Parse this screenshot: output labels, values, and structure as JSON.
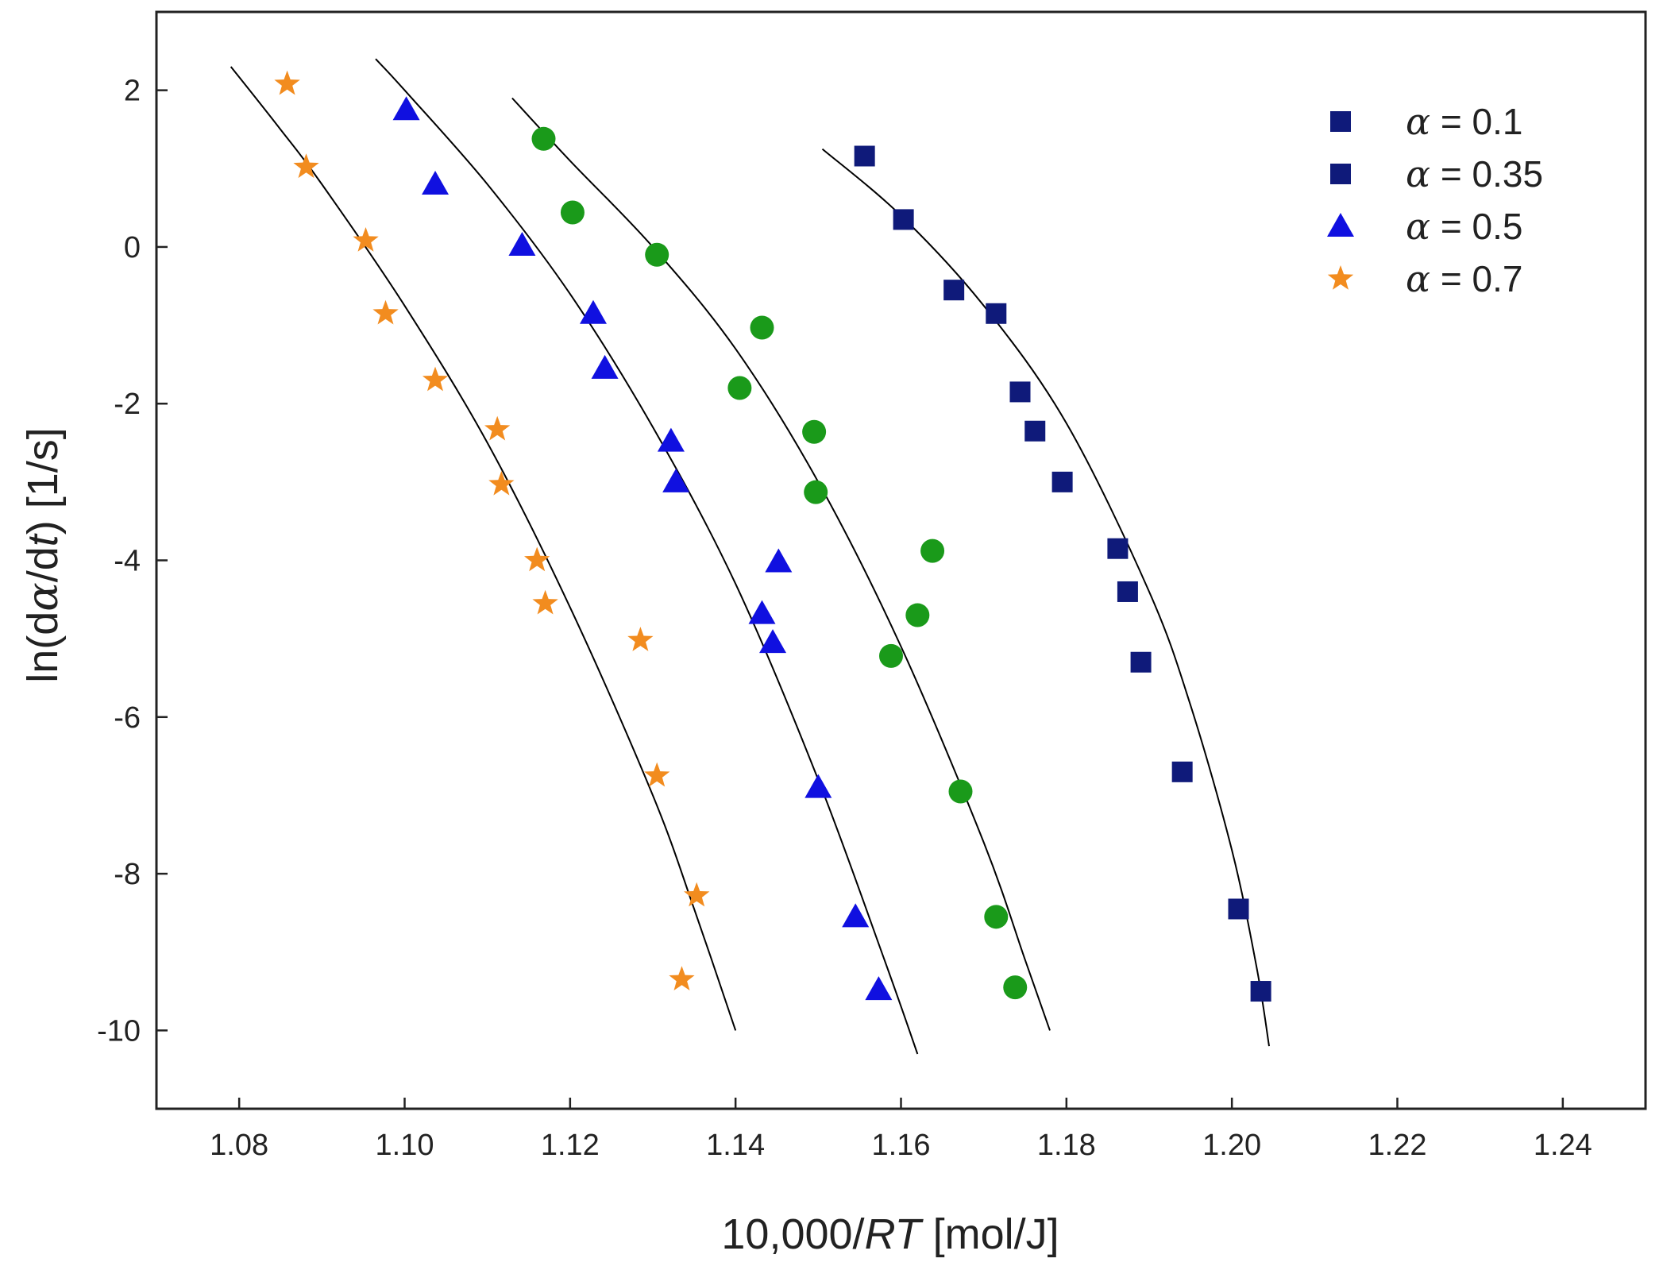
{
  "colors": {
    "square": "#0f1a7a",
    "circle": "#1a9a1a",
    "triangle": "#1010e0",
    "star": "#f28c1f",
    "fit_line": "#000000",
    "axis": "#222222"
  },
  "chart_data": {
    "type": "scatter",
    "title": "",
    "xlabel_parts": {
      "pre": "10,000/",
      "italic": "RT",
      "post": " [mol/J]"
    },
    "ylabel_parts": {
      "pre": "ln(d",
      "greek": "α",
      "mid": "/d",
      "italic": "t",
      "post": ")  [1/s]"
    },
    "xlim": [
      1.07,
      1.25
    ],
    "ylim": [
      -11,
      3
    ],
    "xticks": [
      1.08,
      1.1,
      1.12,
      1.14,
      1.16,
      1.18,
      1.2,
      1.22,
      1.24
    ],
    "xtick_labels": [
      "1.08",
      "1.10",
      "1.12",
      "1.14",
      "1.16",
      "1.18",
      "1.20",
      "1.22",
      "1.24"
    ],
    "yticks": [
      2,
      0,
      -2,
      -4,
      -6,
      -8,
      -10
    ],
    "ytick_labels": [
      "2",
      "0",
      "-2",
      "-4",
      "-6",
      "-8",
      "-10"
    ],
    "grid": false,
    "legend_position": "top-right",
    "legend": [
      {
        "symbol": "square",
        "greek": "α",
        "text": " = 0.1"
      },
      {
        "symbol": "square",
        "greek": "α",
        "text": " = 0.35"
      },
      {
        "symbol": "triangle",
        "greek": "α",
        "text": " = 0.5"
      },
      {
        "symbol": "star",
        "greek": "α",
        "text": " = 0.7"
      }
    ],
    "series": [
      {
        "marker": "square",
        "points": [
          [
            1.1556,
            1.16
          ],
          [
            1.1603,
            0.35
          ],
          [
            1.1664,
            -0.55
          ],
          [
            1.1715,
            -0.85
          ],
          [
            1.1744,
            -1.85
          ],
          [
            1.1762,
            -2.35
          ],
          [
            1.1795,
            -3.0
          ],
          [
            1.1862,
            -3.85
          ],
          [
            1.1874,
            -4.4
          ],
          [
            1.189,
            -5.3
          ],
          [
            1.194,
            -6.7
          ],
          [
            1.2008,
            -8.45
          ],
          [
            1.2035,
            -9.5
          ]
        ],
        "fit": [
          [
            1.1505,
            1.25
          ],
          [
            1.16,
            0.4
          ],
          [
            1.17,
            -0.75
          ],
          [
            1.18,
            -2.25
          ],
          [
            1.19,
            -4.4
          ],
          [
            1.195,
            -5.85
          ],
          [
            1.2,
            -7.7
          ],
          [
            1.203,
            -9.2
          ],
          [
            1.2045,
            -10.2
          ]
        ]
      },
      {
        "marker": "circle",
        "points": [
          [
            1.1168,
            1.38
          ],
          [
            1.1203,
            0.44
          ],
          [
            1.1305,
            -0.1
          ],
          [
            1.1432,
            -1.03
          ],
          [
            1.1405,
            -1.8
          ],
          [
            1.1495,
            -2.36
          ],
          [
            1.1497,
            -3.13
          ],
          [
            1.1638,
            -3.88
          ],
          [
            1.162,
            -4.7
          ],
          [
            1.1588,
            -5.22
          ],
          [
            1.1672,
            -6.95
          ],
          [
            1.1715,
            -8.55
          ],
          [
            1.1738,
            -9.45
          ]
        ],
        "fit": [
          [
            1.113,
            1.9
          ],
          [
            1.12,
            1.1
          ],
          [
            1.13,
            0.0
          ],
          [
            1.14,
            -1.3
          ],
          [
            1.15,
            -3.0
          ],
          [
            1.16,
            -5.1
          ],
          [
            1.17,
            -7.6
          ],
          [
            1.175,
            -9.1
          ],
          [
            1.178,
            -10.0
          ]
        ]
      },
      {
        "marker": "triangle",
        "points": [
          [
            1.1002,
            1.75
          ],
          [
            1.1037,
            0.8
          ],
          [
            1.1142,
            0.02
          ],
          [
            1.1228,
            -0.85
          ],
          [
            1.1242,
            -1.55
          ],
          [
            1.1322,
            -2.48
          ],
          [
            1.1328,
            -3.0
          ],
          [
            1.1452,
            -4.02
          ],
          [
            1.1432,
            -4.68
          ],
          [
            1.1445,
            -5.05
          ],
          [
            1.15,
            -6.9
          ],
          [
            1.1545,
            -8.55
          ],
          [
            1.1573,
            -9.48
          ]
        ],
        "fit": [
          [
            1.0965,
            2.4
          ],
          [
            1.1,
            2.0
          ],
          [
            1.11,
            0.8
          ],
          [
            1.12,
            -0.6
          ],
          [
            1.13,
            -2.3
          ],
          [
            1.14,
            -4.3
          ],
          [
            1.15,
            -6.8
          ],
          [
            1.158,
            -9.1
          ],
          [
            1.162,
            -10.3
          ]
        ]
      },
      {
        "marker": "star",
        "points": [
          [
            1.0858,
            2.08
          ],
          [
            1.0881,
            1.02
          ],
          [
            1.0953,
            0.08
          ],
          [
            1.0977,
            -0.85
          ],
          [
            1.1037,
            -1.7
          ],
          [
            1.1112,
            -2.33
          ],
          [
            1.1117,
            -3.03
          ],
          [
            1.116,
            -4.0
          ],
          [
            1.117,
            -4.55
          ],
          [
            1.1285,
            -5.02
          ],
          [
            1.1305,
            -6.75
          ],
          [
            1.1353,
            -8.28
          ],
          [
            1.1335,
            -9.35
          ]
        ],
        "fit": [
          [
            1.079,
            2.3
          ],
          [
            1.085,
            1.5
          ],
          [
            1.09,
            0.8
          ],
          [
            1.1,
            -0.75
          ],
          [
            1.11,
            -2.5
          ],
          [
            1.12,
            -4.6
          ],
          [
            1.13,
            -7.0
          ],
          [
            1.135,
            -8.45
          ],
          [
            1.14,
            -10.0
          ]
        ]
      }
    ]
  }
}
